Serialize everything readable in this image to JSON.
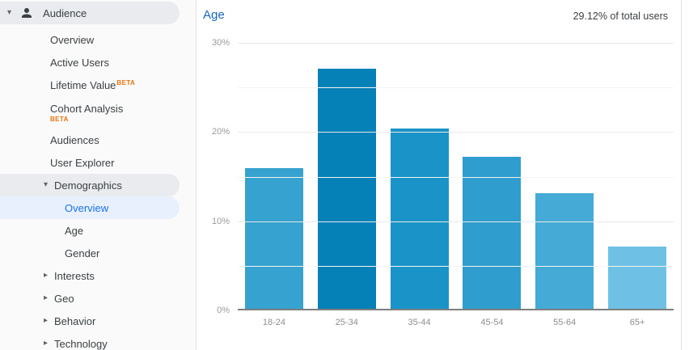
{
  "colors": {
    "accent_link_blue": "#1565c0",
    "selected_item_text": "#1a73e8",
    "selected_item_bg": "#e8f0fe",
    "section_pill_bg": "#e9ebee",
    "beta_orange": "#e8710a",
    "axis_label_gray": "#9a9a9a",
    "sidebar_text": "#3c4043"
  },
  "sidebar": {
    "header": {
      "label": "Audience",
      "icon": "person-icon",
      "caret": "down"
    },
    "beta_label": "BETA",
    "items": [
      {
        "label": "Overview",
        "level": 1
      },
      {
        "label": "Active Users",
        "level": 1
      },
      {
        "label": "Lifetime Value",
        "level": 1,
        "beta": "sup"
      },
      {
        "label": "Cohort Analysis",
        "level": 1,
        "beta": "below"
      },
      {
        "label": "Audiences",
        "level": 1
      },
      {
        "label": "User Explorer",
        "level": 1
      },
      {
        "label": "Demographics",
        "level": 1,
        "caret": "down",
        "pill": "gray",
        "expanded": true
      },
      {
        "label": "Overview",
        "level": 2,
        "selected": true,
        "parent": "demographics"
      },
      {
        "label": "Age",
        "level": 2,
        "parent": "demographics"
      },
      {
        "label": "Gender",
        "level": 2,
        "parent": "demographics"
      },
      {
        "label": "Interests",
        "level": 1,
        "caret": "right"
      },
      {
        "label": "Geo",
        "level": 1,
        "caret": "right"
      },
      {
        "label": "Behavior",
        "level": 1,
        "caret": "right"
      },
      {
        "label": "Technology",
        "level": 1,
        "caret": "right"
      }
    ]
  },
  "chart_card": {
    "title": "Age",
    "stat": "29.12% of total users"
  },
  "chart_data": {
    "type": "bar",
    "title": "Age",
    "categories": [
      "18-24",
      "25-34",
      "35-44",
      "45-54",
      "55-64",
      "65+"
    ],
    "values": [
      15.8,
      26.9,
      20.2,
      17.0,
      13.0,
      7.0
    ],
    "bar_colors": [
      "#36a2cf",
      "#0581b8",
      "#1a93c8",
      "#2f9dcd",
      "#45abd6",
      "#6ec1e4"
    ],
    "xlabel": "",
    "ylabel": "",
    "ylim": [
      0,
      30
    ],
    "yticks_labeled": [
      0,
      10,
      20,
      30
    ],
    "yticks_minor": [
      5,
      15,
      25
    ],
    "ytick_suffix": "%",
    "grid": true,
    "legend": false
  }
}
